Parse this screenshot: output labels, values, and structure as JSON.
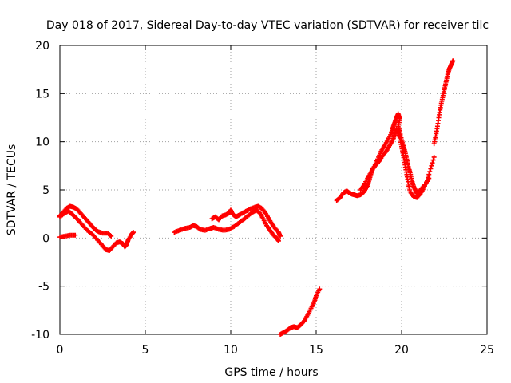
{
  "chart_data": {
    "type": "scatter",
    "title": "Day 018 of 2017, Sidereal Day-to-day VTEC variation (SDTVAR) for receiver tilc",
    "xlabel": "GPS time / hours",
    "ylabel": "SDTVAR / TECUs",
    "xlim": [
      0,
      25
    ],
    "ylim": [
      -10,
      20
    ],
    "x_ticks": [
      0,
      5,
      10,
      15,
      20,
      25
    ],
    "y_ticks": [
      -10,
      -5,
      0,
      5,
      10,
      15,
      20
    ],
    "grid": true,
    "marker": "plus",
    "color": "#ff0000",
    "series": [
      {
        "name": "segment-1",
        "points": [
          [
            0.0,
            2.3
          ],
          [
            0.2,
            2.7
          ],
          [
            0.4,
            3.1
          ],
          [
            0.6,
            3.3
          ],
          [
            0.8,
            3.2
          ],
          [
            1.0,
            3.0
          ],
          [
            1.2,
            2.6
          ],
          [
            1.4,
            2.2
          ],
          [
            1.6,
            1.8
          ],
          [
            1.8,
            1.4
          ],
          [
            2.0,
            1.0
          ],
          [
            2.2,
            0.7
          ],
          [
            2.5,
            0.5
          ],
          [
            2.8,
            0.5
          ],
          [
            3.0,
            0.2
          ]
        ]
      },
      {
        "name": "segment-2",
        "points": [
          [
            0.0,
            2.2
          ],
          [
            0.3,
            2.6
          ],
          [
            0.5,
            2.8
          ],
          [
            0.7,
            2.5
          ],
          [
            1.0,
            2.0
          ],
          [
            1.3,
            1.4
          ],
          [
            1.6,
            0.8
          ],
          [
            1.9,
            0.4
          ],
          [
            2.2,
            -0.2
          ],
          [
            2.5,
            -0.8
          ],
          [
            2.7,
            -1.2
          ],
          [
            2.9,
            -1.3
          ],
          [
            3.1,
            -0.9
          ],
          [
            3.3,
            -0.5
          ],
          [
            3.5,
            -0.4
          ],
          [
            3.7,
            -0.6
          ],
          [
            3.8,
            -0.9
          ],
          [
            3.9,
            -0.7
          ],
          [
            4.0,
            -0.2
          ],
          [
            4.2,
            0.4
          ],
          [
            4.3,
            0.6
          ]
        ]
      },
      {
        "name": "segment-3",
        "points": [
          [
            0.0,
            0.1
          ],
          [
            0.3,
            0.2
          ],
          [
            0.6,
            0.3
          ],
          [
            0.9,
            0.3
          ]
        ]
      },
      {
        "name": "segment-4",
        "points": [
          [
            6.7,
            0.6
          ],
          [
            7.0,
            0.8
          ],
          [
            7.3,
            1.0
          ],
          [
            7.6,
            1.1
          ],
          [
            7.8,
            1.3
          ],
          [
            8.0,
            1.2
          ],
          [
            8.2,
            0.9
          ],
          [
            8.5,
            0.8
          ],
          [
            8.8,
            1.0
          ],
          [
            9.0,
            1.1
          ],
          [
            9.3,
            0.9
          ],
          [
            9.6,
            0.8
          ],
          [
            9.9,
            0.9
          ],
          [
            10.2,
            1.2
          ],
          [
            10.5,
            1.6
          ],
          [
            10.8,
            2.0
          ],
          [
            11.0,
            2.3
          ],
          [
            11.3,
            2.7
          ],
          [
            11.5,
            2.9
          ],
          [
            11.7,
            2.6
          ],
          [
            11.9,
            2.0
          ],
          [
            12.1,
            1.3
          ],
          [
            12.3,
            0.8
          ],
          [
            12.5,
            0.3
          ],
          [
            12.7,
            0.0
          ],
          [
            12.8,
            -0.3
          ]
        ]
      },
      {
        "name": "segment-5",
        "points": [
          [
            8.9,
            2.0
          ],
          [
            9.1,
            2.2
          ],
          [
            9.3,
            1.9
          ],
          [
            9.5,
            2.3
          ],
          [
            9.7,
            2.4
          ],
          [
            9.9,
            2.6
          ],
          [
            10.0,
            2.9
          ],
          [
            10.1,
            2.5
          ],
          [
            10.3,
            2.2
          ],
          [
            10.5,
            2.4
          ],
          [
            10.8,
            2.7
          ],
          [
            11.1,
            3.0
          ],
          [
            11.4,
            3.2
          ],
          [
            11.6,
            3.3
          ],
          [
            11.8,
            3.1
          ],
          [
            12.0,
            2.7
          ],
          [
            12.2,
            2.1
          ],
          [
            12.4,
            1.5
          ],
          [
            12.6,
            1.0
          ],
          [
            12.8,
            0.6
          ],
          [
            12.9,
            0.2
          ]
        ]
      },
      {
        "name": "segment-6",
        "points": [
          [
            12.9,
            -10.0
          ],
          [
            13.1,
            -9.8
          ],
          [
            13.3,
            -9.6
          ],
          [
            13.5,
            -9.3
          ],
          [
            13.7,
            -9.2
          ],
          [
            13.9,
            -9.3
          ],
          [
            14.1,
            -9.0
          ],
          [
            14.3,
            -8.6
          ],
          [
            14.5,
            -8.0
          ],
          [
            14.7,
            -7.3
          ],
          [
            14.9,
            -6.6
          ],
          [
            15.0,
            -6.0
          ],
          [
            15.2,
            -5.3
          ]
        ]
      },
      {
        "name": "segment-7",
        "points": [
          [
            16.2,
            3.9
          ],
          [
            16.4,
            4.2
          ],
          [
            16.6,
            4.7
          ],
          [
            16.8,
            4.9
          ],
          [
            17.0,
            4.6
          ],
          [
            17.2,
            4.5
          ],
          [
            17.4,
            4.4
          ],
          [
            17.6,
            4.5
          ],
          [
            17.8,
            4.8
          ],
          [
            18.0,
            5.4
          ],
          [
            18.1,
            6.0
          ],
          [
            18.2,
            6.6
          ],
          [
            18.3,
            7.2
          ],
          [
            18.5,
            7.6
          ],
          [
            18.7,
            8.0
          ],
          [
            18.9,
            8.6
          ],
          [
            19.1,
            9.0
          ],
          [
            19.3,
            9.6
          ],
          [
            19.5,
            10.2
          ],
          [
            19.6,
            10.8
          ],
          [
            19.7,
            11.3
          ],
          [
            19.8,
            11.0
          ],
          [
            19.9,
            10.4
          ],
          [
            20.0,
            9.5
          ],
          [
            20.1,
            8.6
          ],
          [
            20.2,
            7.6
          ],
          [
            20.3,
            6.6
          ],
          [
            20.4,
            5.6
          ],
          [
            20.5,
            4.8
          ],
          [
            20.7,
            4.3
          ],
          [
            20.9,
            4.2
          ],
          [
            21.1,
            4.6
          ],
          [
            21.3,
            5.2
          ],
          [
            21.5,
            6.0
          ],
          [
            21.7,
            7.2
          ],
          [
            21.9,
            8.4
          ]
        ]
      },
      {
        "name": "segment-8",
        "points": [
          [
            17.6,
            5.0
          ],
          [
            17.8,
            5.5
          ],
          [
            18.0,
            6.2
          ],
          [
            18.2,
            6.8
          ],
          [
            18.4,
            7.4
          ],
          [
            18.6,
            8.2
          ],
          [
            18.8,
            9.0
          ],
          [
            19.0,
            9.6
          ],
          [
            19.2,
            10.2
          ],
          [
            19.4,
            10.9
          ],
          [
            19.5,
            11.5
          ],
          [
            19.6,
            12.0
          ],
          [
            19.7,
            12.5
          ],
          [
            19.8,
            12.9
          ],
          [
            19.9,
            12.4
          ],
          [
            19.8,
            11.6
          ],
          [
            19.9,
            11.0
          ],
          [
            20.0,
            10.2
          ],
          [
            20.1,
            9.6
          ],
          [
            20.2,
            9.0
          ],
          [
            20.3,
            8.2
          ],
          [
            20.4,
            7.4
          ],
          [
            20.5,
            6.8
          ],
          [
            20.6,
            6.0
          ],
          [
            20.7,
            5.4
          ],
          [
            20.8,
            5.0
          ],
          [
            20.9,
            4.6
          ],
          [
            21.0,
            4.8
          ],
          [
            21.2,
            5.2
          ],
          [
            21.4,
            5.6
          ],
          [
            21.6,
            6.2
          ]
        ]
      },
      {
        "name": "segment-9",
        "points": [
          [
            21.9,
            9.8
          ],
          [
            22.0,
            10.6
          ],
          [
            22.1,
            11.6
          ],
          [
            22.2,
            12.8
          ],
          [
            22.3,
            13.8
          ],
          [
            22.4,
            14.6
          ],
          [
            22.5,
            15.4
          ],
          [
            22.6,
            16.2
          ],
          [
            22.7,
            17.0
          ],
          [
            22.8,
            17.6
          ],
          [
            22.9,
            18.0
          ],
          [
            23.0,
            18.4
          ]
        ]
      }
    ]
  }
}
